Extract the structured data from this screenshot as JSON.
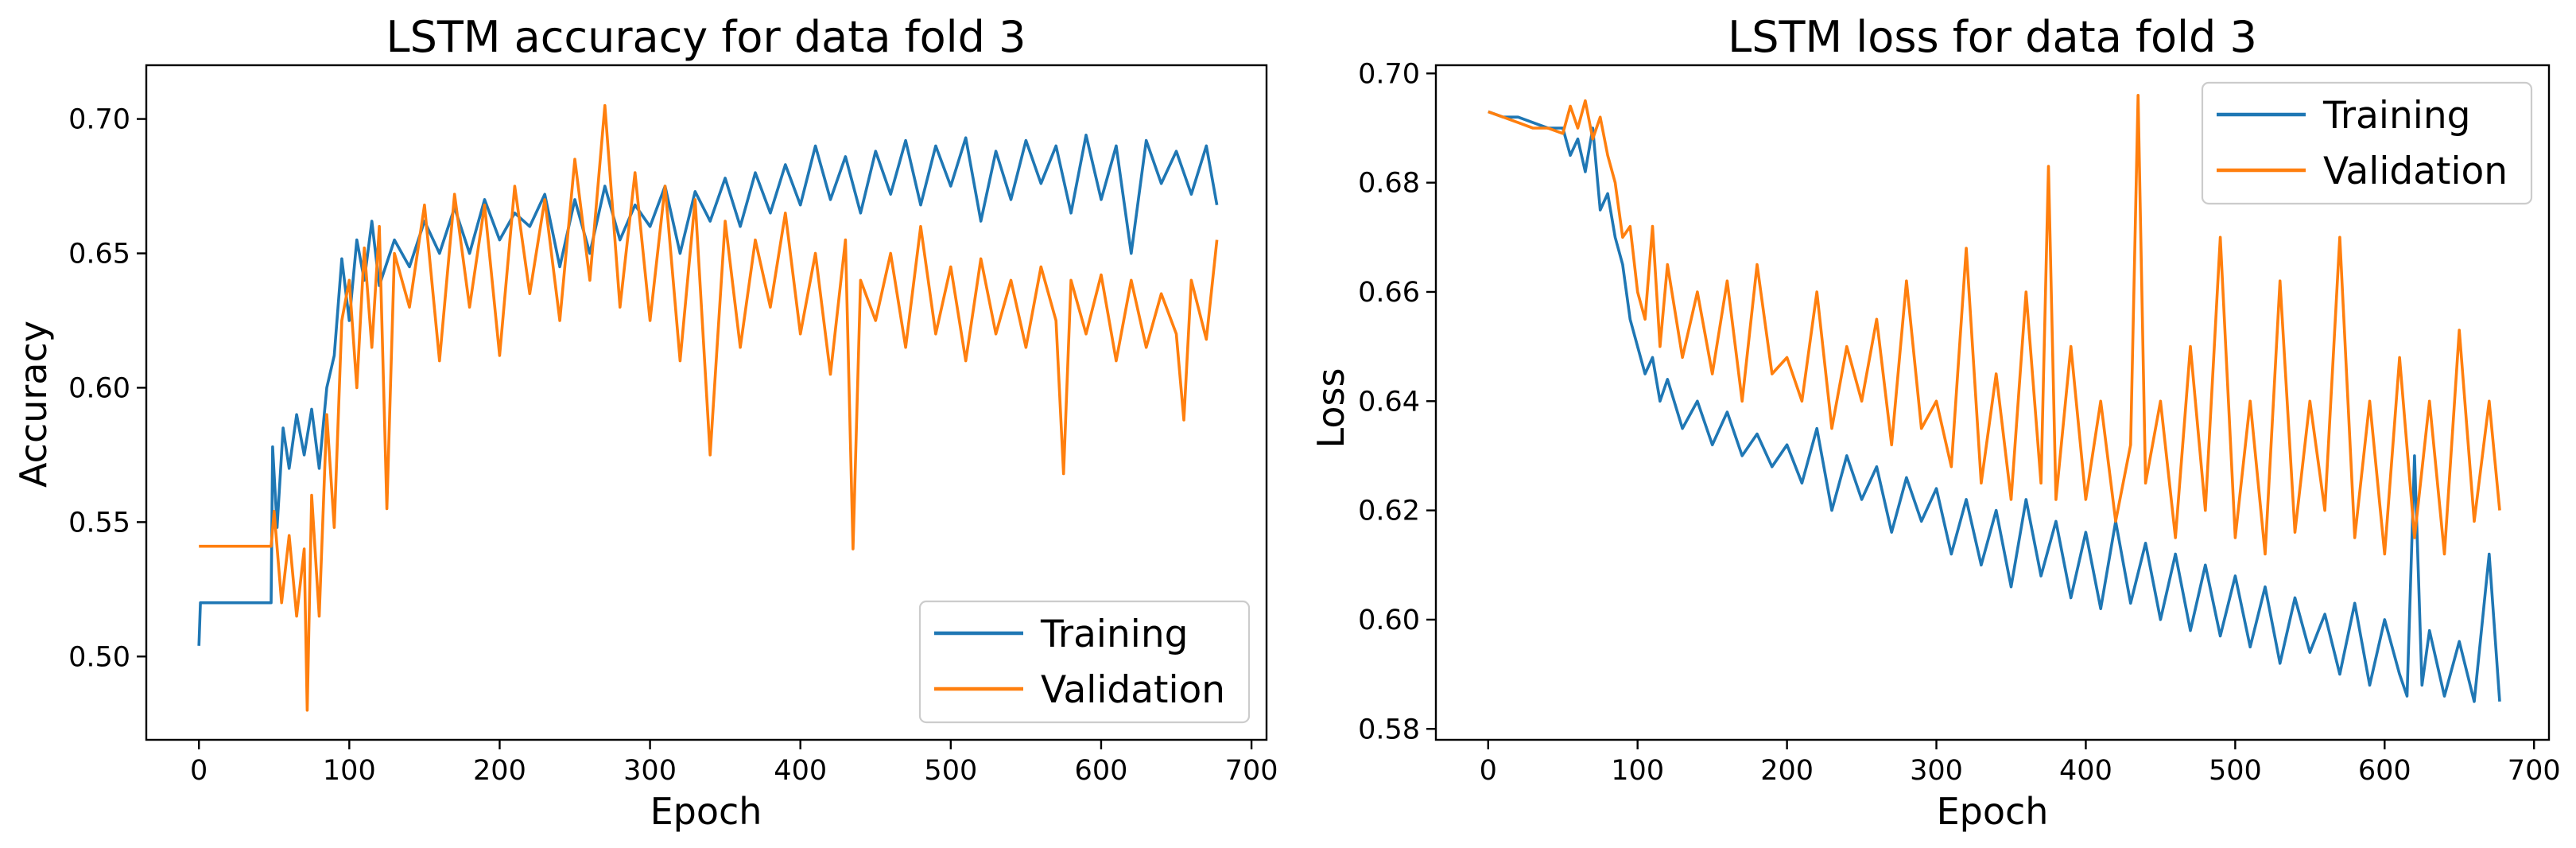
{
  "chart_data": [
    {
      "type": "line",
      "title": "LSTM accuracy for data fold 3",
      "xlabel": "Epoch",
      "ylabel": "Accuracy",
      "xlim": [
        -35,
        710
      ],
      "ylim": [
        0.469,
        0.72
      ],
      "xticks": [
        0,
        100,
        200,
        300,
        400,
        500,
        600,
        700
      ],
      "xtick_labels": [
        "0",
        "100",
        "200",
        "300",
        "400",
        "500",
        "600",
        "700"
      ],
      "yticks": [
        0.5,
        0.55,
        0.6,
        0.65,
        0.7
      ],
      "ytick_labels": [
        "0.50",
        "0.55",
        "0.60",
        "0.65",
        "0.70"
      ],
      "legend": {
        "position": "lower-right",
        "entries": [
          "Training",
          "Validation"
        ]
      },
      "series": [
        {
          "name": "Training",
          "color": "#1f77b4",
          "x": [
            0,
            1,
            10,
            20,
            30,
            40,
            48,
            49,
            52,
            56,
            60,
            65,
            70,
            75,
            80,
            85,
            90,
            95,
            100,
            105,
            110,
            115,
            120,
            130,
            140,
            150,
            160,
            170,
            180,
            190,
            200,
            210,
            220,
            230,
            240,
            250,
            260,
            270,
            280,
            290,
            300,
            310,
            320,
            330,
            340,
            350,
            360,
            370,
            380,
            390,
            400,
            410,
            420,
            430,
            440,
            450,
            460,
            470,
            480,
            490,
            500,
            510,
            520,
            530,
            540,
            550,
            560,
            570,
            580,
            590,
            600,
            610,
            620,
            630,
            640,
            650,
            660,
            670,
            677
          ],
          "values": [
            0.504,
            0.52,
            0.52,
            0.52,
            0.52,
            0.52,
            0.52,
            0.578,
            0.548,
            0.585,
            0.57,
            0.59,
            0.575,
            0.592,
            0.57,
            0.6,
            0.612,
            0.648,
            0.625,
            0.655,
            0.64,
            0.662,
            0.638,
            0.655,
            0.645,
            0.662,
            0.65,
            0.667,
            0.65,
            0.67,
            0.655,
            0.665,
            0.66,
            0.672,
            0.645,
            0.67,
            0.65,
            0.675,
            0.655,
            0.668,
            0.66,
            0.675,
            0.65,
            0.673,
            0.662,
            0.678,
            0.66,
            0.68,
            0.665,
            0.683,
            0.668,
            0.69,
            0.67,
            0.686,
            0.665,
            0.688,
            0.672,
            0.692,
            0.668,
            0.69,
            0.675,
            0.693,
            0.662,
            0.688,
            0.67,
            0.692,
            0.676,
            0.69,
            0.665,
            0.694,
            0.67,
            0.69,
            0.65,
            0.692,
            0.676,
            0.688,
            0.672,
            0.69,
            0.668
          ]
        },
        {
          "name": "Validation",
          "color": "#ff7f0e",
          "x": [
            0,
            10,
            20,
            30,
            40,
            48,
            50,
            55,
            60,
            65,
            70,
            72,
            75,
            80,
            85,
            90,
            95,
            100,
            105,
            110,
            115,
            120,
            125,
            130,
            140,
            150,
            160,
            170,
            180,
            190,
            200,
            210,
            220,
            230,
            240,
            250,
            260,
            270,
            280,
            290,
            300,
            310,
            320,
            330,
            340,
            350,
            360,
            370,
            380,
            390,
            400,
            410,
            420,
            430,
            435,
            440,
            450,
            460,
            470,
            480,
            490,
            500,
            510,
            520,
            530,
            540,
            550,
            560,
            570,
            575,
            580,
            590,
            600,
            610,
            620,
            630,
            640,
            650,
            655,
            660,
            670,
            677
          ],
          "values": [
            0.541,
            0.541,
            0.541,
            0.541,
            0.541,
            0.541,
            0.554,
            0.52,
            0.545,
            0.515,
            0.54,
            0.48,
            0.56,
            0.515,
            0.59,
            0.548,
            0.625,
            0.64,
            0.6,
            0.652,
            0.615,
            0.66,
            0.555,
            0.65,
            0.63,
            0.668,
            0.61,
            0.672,
            0.63,
            0.668,
            0.612,
            0.675,
            0.635,
            0.67,
            0.625,
            0.685,
            0.64,
            0.705,
            0.63,
            0.68,
            0.625,
            0.675,
            0.61,
            0.67,
            0.575,
            0.662,
            0.615,
            0.655,
            0.63,
            0.665,
            0.62,
            0.65,
            0.605,
            0.655,
            0.54,
            0.64,
            0.625,
            0.65,
            0.615,
            0.66,
            0.62,
            0.645,
            0.61,
            0.648,
            0.62,
            0.64,
            0.615,
            0.645,
            0.625,
            0.568,
            0.64,
            0.62,
            0.642,
            0.61,
            0.64,
            0.615,
            0.635,
            0.62,
            0.588,
            0.64,
            0.618,
            0.655
          ]
        }
      ]
    },
    {
      "type": "line",
      "title": "LSTM loss for data fold 3",
      "xlabel": "Epoch",
      "ylabel": "Loss",
      "xlim": [
        -35,
        710
      ],
      "ylim": [
        0.578,
        0.7015
      ],
      "xticks": [
        0,
        100,
        200,
        300,
        400,
        500,
        600,
        700
      ],
      "xtick_labels": [
        "0",
        "100",
        "200",
        "300",
        "400",
        "500",
        "600",
        "700"
      ],
      "yticks": [
        0.58,
        0.6,
        0.62,
        0.64,
        0.66,
        0.68,
        0.7
      ],
      "ytick_labels": [
        "0.58",
        "0.60",
        "0.62",
        "0.64",
        "0.66",
        "0.68",
        "0.70"
      ],
      "legend": {
        "position": "upper-right",
        "entries": [
          "Training",
          "Validation"
        ]
      },
      "series": [
        {
          "name": "Training",
          "color": "#1f77b4",
          "x": [
            0,
            10,
            20,
            30,
            40,
            50,
            55,
            60,
            65,
            70,
            75,
            80,
            85,
            90,
            95,
            100,
            105,
            110,
            115,
            120,
            130,
            140,
            150,
            160,
            170,
            180,
            190,
            200,
            210,
            220,
            230,
            240,
            250,
            260,
            270,
            280,
            290,
            300,
            310,
            320,
            330,
            340,
            350,
            360,
            370,
            380,
            390,
            400,
            410,
            420,
            430,
            440,
            450,
            460,
            470,
            480,
            490,
            500,
            510,
            520,
            530,
            540,
            550,
            560,
            570,
            580,
            590,
            600,
            610,
            615,
            620,
            625,
            630,
            640,
            650,
            660,
            670,
            677
          ],
          "values": [
            0.693,
            0.692,
            0.692,
            0.691,
            0.69,
            0.69,
            0.685,
            0.688,
            0.682,
            0.69,
            0.675,
            0.678,
            0.67,
            0.665,
            0.655,
            0.65,
            0.645,
            0.648,
            0.64,
            0.644,
            0.635,
            0.64,
            0.632,
            0.638,
            0.63,
            0.634,
            0.628,
            0.632,
            0.625,
            0.635,
            0.62,
            0.63,
            0.622,
            0.628,
            0.616,
            0.626,
            0.618,
            0.624,
            0.612,
            0.622,
            0.61,
            0.62,
            0.606,
            0.622,
            0.608,
            0.618,
            0.604,
            0.616,
            0.602,
            0.618,
            0.603,
            0.614,
            0.6,
            0.612,
            0.598,
            0.61,
            0.597,
            0.608,
            0.595,
            0.606,
            0.592,
            0.604,
            0.594,
            0.601,
            0.59,
            0.603,
            0.588,
            0.6,
            0.59,
            0.586,
            0.63,
            0.588,
            0.598,
            0.586,
            0.596,
            0.585,
            0.612,
            0.585
          ]
        },
        {
          "name": "Validation",
          "color": "#ff7f0e",
          "x": [
            0,
            10,
            20,
            30,
            40,
            50,
            55,
            60,
            65,
            70,
            75,
            80,
            85,
            90,
            95,
            100,
            105,
            110,
            115,
            120,
            130,
            140,
            150,
            160,
            170,
            180,
            190,
            200,
            210,
            220,
            230,
            240,
            250,
            260,
            270,
            280,
            290,
            300,
            310,
            320,
            330,
            340,
            350,
            360,
            370,
            375,
            380,
            390,
            400,
            410,
            420,
            430,
            435,
            440,
            450,
            460,
            470,
            480,
            490,
            500,
            510,
            520,
            530,
            540,
            550,
            560,
            570,
            580,
            590,
            600,
            610,
            620,
            630,
            640,
            650,
            660,
            670,
            677
          ],
          "values": [
            0.693,
            0.692,
            0.691,
            0.69,
            0.69,
            0.689,
            0.694,
            0.69,
            0.695,
            0.688,
            0.692,
            0.685,
            0.68,
            0.67,
            0.672,
            0.66,
            0.655,
            0.672,
            0.65,
            0.665,
            0.648,
            0.66,
            0.645,
            0.662,
            0.64,
            0.665,
            0.645,
            0.648,
            0.64,
            0.66,
            0.635,
            0.65,
            0.64,
            0.655,
            0.632,
            0.662,
            0.635,
            0.64,
            0.628,
            0.668,
            0.625,
            0.645,
            0.622,
            0.66,
            0.625,
            0.683,
            0.622,
            0.65,
            0.622,
            0.64,
            0.618,
            0.632,
            0.696,
            0.625,
            0.64,
            0.615,
            0.65,
            0.62,
            0.67,
            0.615,
            0.64,
            0.612,
            0.662,
            0.616,
            0.64,
            0.62,
            0.67,
            0.615,
            0.64,
            0.612,
            0.648,
            0.615,
            0.64,
            0.612,
            0.653,
            0.618,
            0.64,
            0.62
          ]
        }
      ]
    }
  ]
}
